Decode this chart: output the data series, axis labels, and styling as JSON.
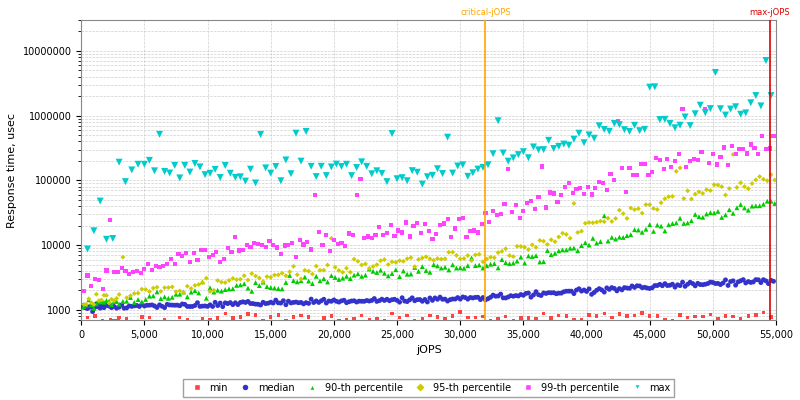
{
  "title": "",
  "xlabel": "jOPS",
  "ylabel": "Response time, usec",
  "xlim": [
    0,
    55000
  ],
  "ylim_log": [
    700,
    30000000
  ],
  "critical_jops": 32000,
  "max_jops": 54500,
  "series": {
    "min": {
      "color": "#ff4444",
      "marker": "s",
      "markersize": 2.5,
      "label": "min"
    },
    "median": {
      "color": "#3333cc",
      "marker": "o",
      "markersize": 3.5,
      "label": "median"
    },
    "p90": {
      "color": "#00cc00",
      "marker": "^",
      "markersize": 3.5,
      "label": "90-th percentile"
    },
    "p95": {
      "color": "#cccc00",
      "marker": "D",
      "markersize": 2.5,
      "label": "95-th percentile"
    },
    "p99": {
      "color": "#ff44ff",
      "marker": "s",
      "markersize": 3.0,
      "label": "99-th percentile"
    },
    "max": {
      "color": "#00cccc",
      "marker": "v",
      "markersize": 5.0,
      "label": "max"
    }
  },
  "legend_fontsize": 7,
  "axis_fontsize": 8,
  "tick_fontsize": 7,
  "background_color": "#ffffff",
  "grid_color": "#bbbbbb"
}
